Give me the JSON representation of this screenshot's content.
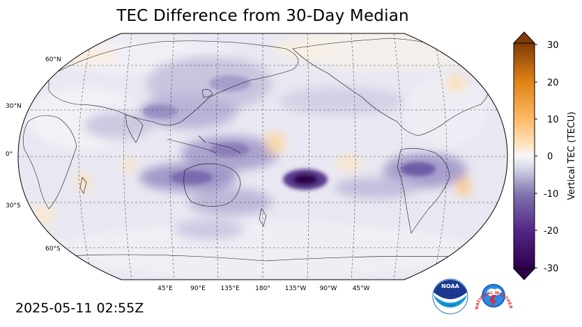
{
  "title": "TEC Difference from 30-Day Median",
  "timestamp": "2025-05-11 02:55Z",
  "map": {
    "projection": "Robinson",
    "central_longitude": "180",
    "lat_labels": [
      "60°N",
      "30°N",
      "0°",
      "30°S",
      "60°S"
    ],
    "lon_labels": [
      "45°E",
      "90°E",
      "135°E",
      "180°",
      "135°W",
      "90°W",
      "45°W"
    ],
    "gridlines": "dashed",
    "coastlines": true
  },
  "colorbar": {
    "label": "Vertical TEC (TECU)",
    "ticks": [
      "30",
      "20",
      "10",
      "0",
      "-10",
      "-20",
      "-30"
    ],
    "min": -30,
    "max": 30,
    "colormap": "PuOr diverging (purple negative, orange positive)",
    "extend": "both"
  },
  "colors": {
    "neg_max": "#2d004b",
    "neg_mid": "#8073ac",
    "neutral": "#f7f7f7",
    "pos_mid": "#fdb863",
    "pos_max": "#7f3b08"
  },
  "features": [
    {
      "name": "strong negative anomaly",
      "lon": "150°W",
      "lat": "15°S",
      "value": -30
    },
    {
      "name": "negative anomaly",
      "lon": "130°E",
      "lat": "10°S",
      "value": -20
    },
    {
      "name": "negative anomaly",
      "lon": "60°W",
      "lat": "0°",
      "value": -18
    },
    {
      "name": "positive anomaly",
      "lon": "170°W",
      "lat": "5°N",
      "value": 6
    },
    {
      "name": "positive anomaly",
      "lon": "40°W",
      "lat": "20°S",
      "value": 7
    }
  ],
  "logos": {
    "noaa": "NOAA",
    "nws": "NATIONAL WEATHER SERVICE"
  }
}
